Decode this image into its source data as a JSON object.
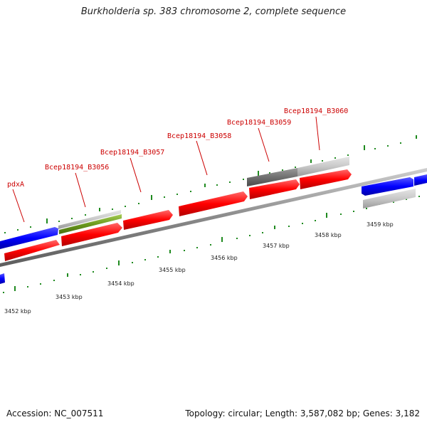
{
  "header": {
    "title": "Burkholderia sp. 383 chromosome 2, complete sequence"
  },
  "footer": {
    "accession": "Accession: NC_007511",
    "topology": "Topology: circular; Length: 3,587,082 bp; Genes: 3,182"
  },
  "genome_map": {
    "axis_labels": [
      "3452 kbp",
      "3453 kbp",
      "3454 kbp",
      "3455 kbp",
      "3456 kbp",
      "3457 kbp",
      "3458 kbp",
      "3459 kbp"
    ],
    "gene_labels": [
      "pdxA",
      "Bcep18194_B3056",
      "Bcep18194_B3057",
      "Bcep18194_B3058",
      "Bcep18194_B3059",
      "Bcep18194_B3060"
    ],
    "colors": {
      "cds": "#ff0000",
      "gene": "#0000ff",
      "rna_light": "#c8c8c8",
      "rna_dark": "#707070",
      "olive": "#6b9a1e",
      "tick": "#1f8a1f",
      "backbone": "#888888",
      "label": "#cc0000"
    }
  }
}
